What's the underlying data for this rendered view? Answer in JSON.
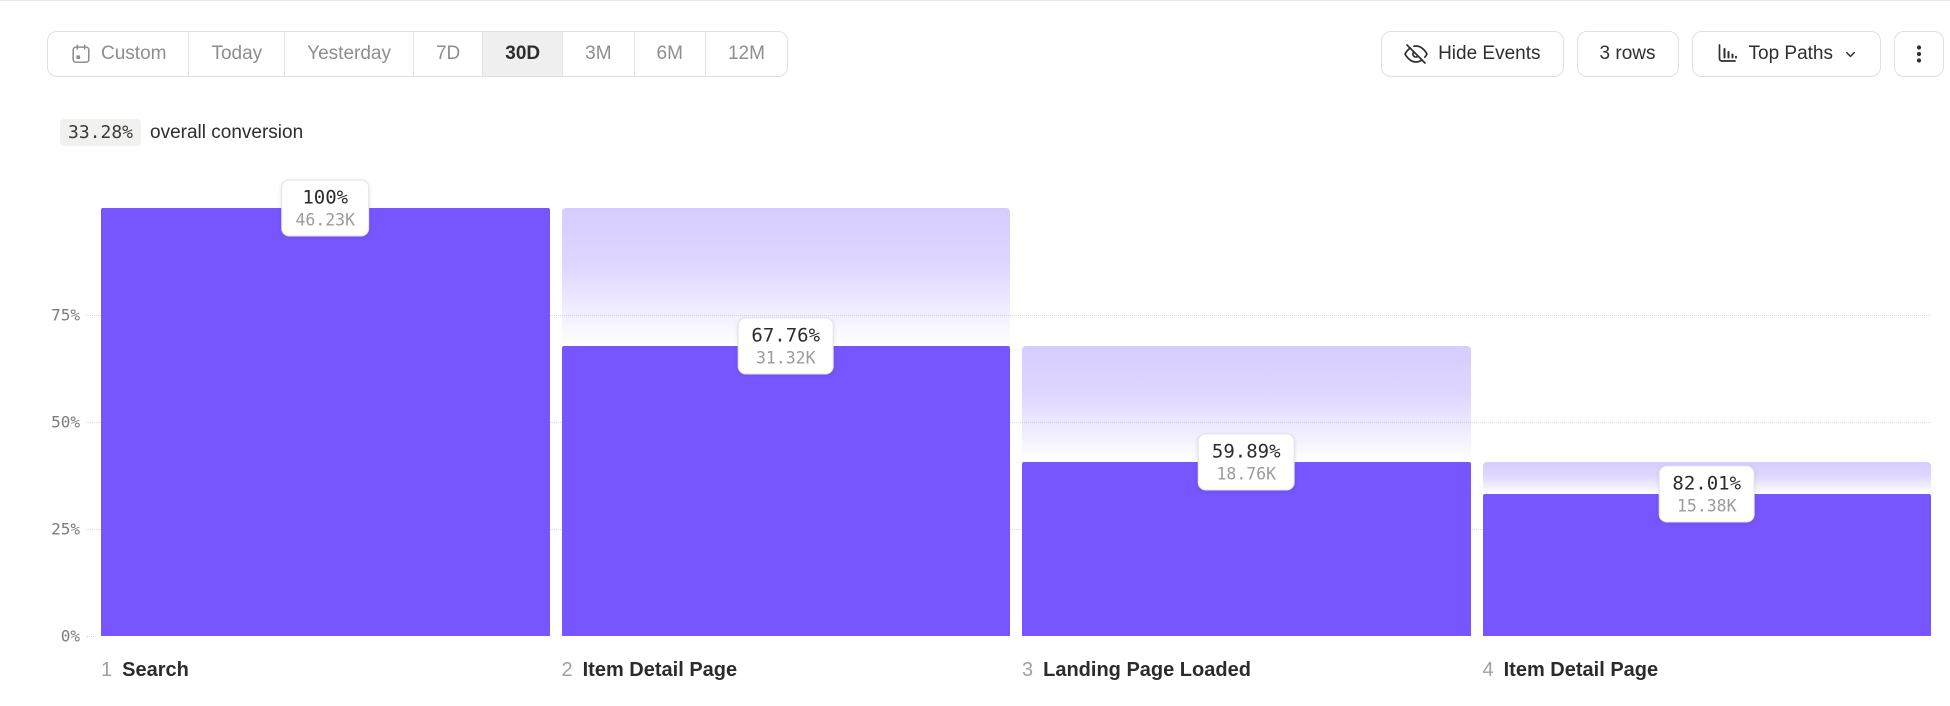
{
  "toolbar": {
    "date_ranges": {
      "items": [
        {
          "label": "Custom",
          "icon": "calendar-icon",
          "selected": false
        },
        {
          "label": "Today",
          "selected": false
        },
        {
          "label": "Yesterday",
          "selected": false
        },
        {
          "label": "7D",
          "selected": false
        },
        {
          "label": "30D",
          "selected": true
        },
        {
          "label": "3M",
          "selected": false
        },
        {
          "label": "6M",
          "selected": false
        },
        {
          "label": "12M",
          "selected": false
        }
      ]
    },
    "hide_events": {
      "label": "Hide Events",
      "icon": "eye-off-icon"
    },
    "rows": {
      "label": "3 rows"
    },
    "view_mode": {
      "label": "Top Paths",
      "icon": "bar-chart-icon",
      "chevron": "chevron-down-icon"
    },
    "more_menu": {
      "icon": "kebab-menu-icon"
    }
  },
  "summary": {
    "value": "33.28%",
    "label": "overall conversion"
  },
  "chart_data": {
    "type": "funnel",
    "bar_color": "#7856FF",
    "dropoff_gradient_top_color": "rgba(120,86,255,0.30)",
    "gridlines": "dotted",
    "y_axis": {
      "range": [
        0,
        100
      ],
      "ticks": [
        {
          "label": "75%",
          "value": 75
        },
        {
          "label": "50%",
          "value": 50
        },
        {
          "label": "25%",
          "value": 25
        },
        {
          "label": "0%",
          "value": 0
        }
      ]
    },
    "steps": [
      {
        "index": "1",
        "name": "Search",
        "conversion_rate": "100%",
        "count": "46.23K",
        "overall_height_pct": 100
      },
      {
        "index": "2",
        "name": "Item Detail Page",
        "conversion_rate": "67.76%",
        "count": "31.32K",
        "overall_height_pct": 67.75
      },
      {
        "index": "3",
        "name": "Landing Page Loaded",
        "conversion_rate": "59.89%",
        "count": "18.76K",
        "overall_height_pct": 40.58
      },
      {
        "index": "4",
        "name": "Item Detail Page",
        "conversion_rate": "82.01%",
        "count": "15.38K",
        "overall_height_pct": 33.27
      }
    ]
  }
}
